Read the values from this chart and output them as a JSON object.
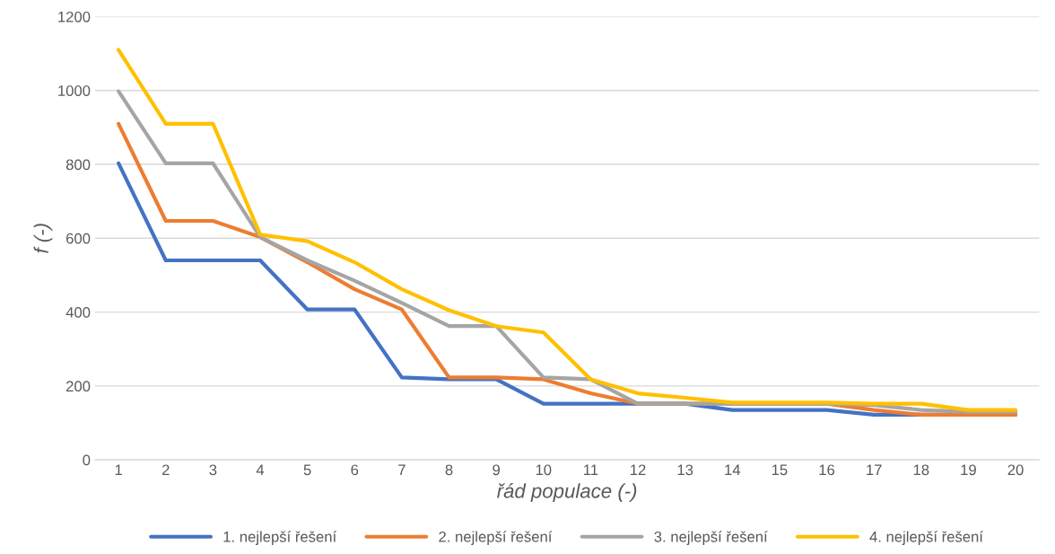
{
  "chart_data": {
    "type": "line",
    "xlabel": "řád populace (-)",
    "ylabel": "f (-)",
    "categories": [
      "1",
      "2",
      "3",
      "4",
      "5",
      "6",
      "7",
      "8",
      "9",
      "10",
      "11",
      "12",
      "13",
      "14",
      "15",
      "16",
      "17",
      "18",
      "19",
      "20"
    ],
    "series": [
      {
        "name": "1. nejlepší řešení",
        "color": "#4472c4",
        "values": [
          803,
          540,
          540,
          540,
          407,
          407,
          223,
          218,
          218,
          152,
          152,
          152,
          152,
          135,
          135,
          135,
          122,
          122,
          122,
          122
        ]
      },
      {
        "name": "2. nejlepší řešení",
        "color": "#ed7d31",
        "values": [
          910,
          647,
          647,
          603,
          535,
          462,
          407,
          223,
          223,
          218,
          180,
          152,
          152,
          152,
          152,
          152,
          135,
          122,
          122,
          122
        ]
      },
      {
        "name": "3. nejlepší řešení",
        "color": "#a5a5a5",
        "values": [
          998,
          803,
          803,
          603,
          540,
          485,
          425,
          362,
          362,
          223,
          218,
          152,
          152,
          152,
          152,
          152,
          148,
          135,
          130,
          130
        ]
      },
      {
        "name": "4. nejlepší řešení",
        "color": "#ffc000",
        "values": [
          1110,
          910,
          910,
          610,
          592,
          535,
          462,
          405,
          362,
          345,
          218,
          180,
          168,
          155,
          155,
          155,
          152,
          152,
          135,
          135
        ]
      }
    ],
    "ylim": [
      0,
      1200
    ],
    "yticks": [
      0,
      200,
      400,
      600,
      800,
      1000,
      1200
    ],
    "grid": "y",
    "legend": "bottom",
    "marker": "none",
    "line_style": "solid"
  }
}
